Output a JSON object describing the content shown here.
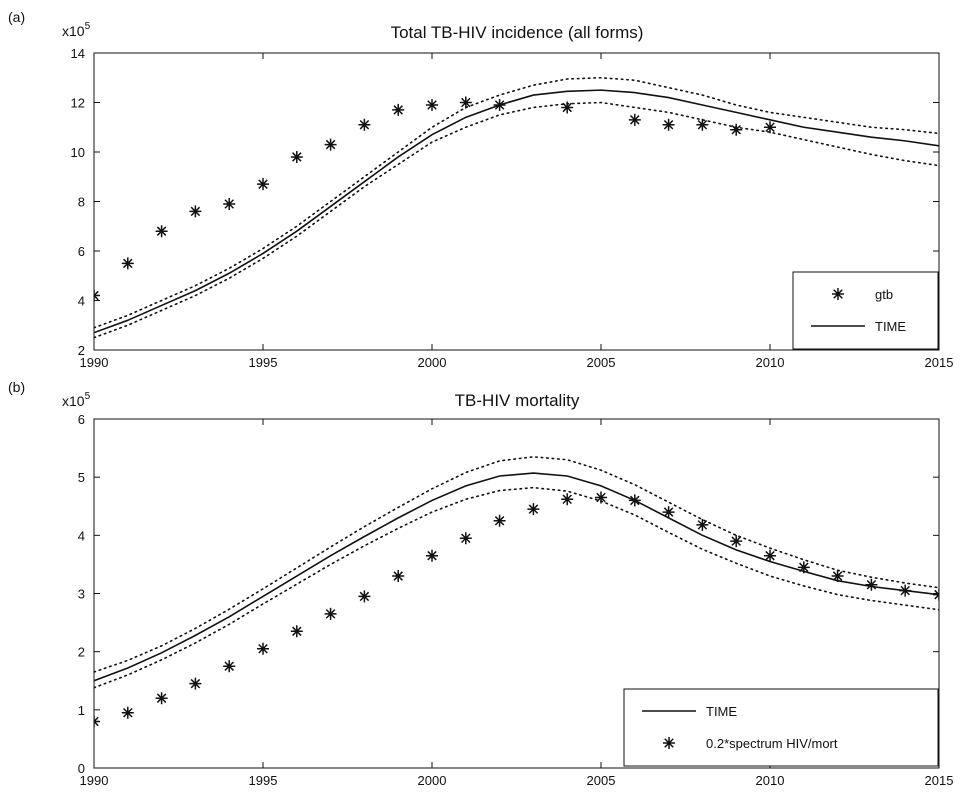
{
  "chart_data": [
    {
      "type": "line",
      "panel_label": "(a)",
      "title": "Total TB-HIV incidence (all forms)",
      "multiplier_base": "x10",
      "multiplier_exp": "5",
      "xlim": [
        1990,
        2015
      ],
      "ylim": [
        2,
        14
      ],
      "x_ticks": [
        1990,
        1995,
        2000,
        2005,
        2010,
        2015
      ],
      "y_ticks": [
        2,
        4,
        6,
        8,
        10,
        12,
        14
      ],
      "legend_position": "bottom-right",
      "legend": [
        {
          "label": "gtb",
          "marker": "star"
        },
        {
          "label": "TIME",
          "marker": "line"
        }
      ],
      "series": [
        {
          "name": "gtb",
          "style": "star",
          "x": [
            1990,
            1991,
            1992,
            1993,
            1994,
            1995,
            1996,
            1997,
            1998,
            1999,
            2000,
            2001,
            2002,
            2004,
            2006,
            2007,
            2008,
            2009,
            2010
          ],
          "y": [
            4.2,
            5.5,
            6.8,
            7.6,
            7.9,
            8.7,
            9.8,
            10.3,
            11.1,
            11.7,
            11.9,
            12.0,
            11.9,
            11.8,
            11.3,
            11.1,
            11.1,
            10.9,
            11.0
          ]
        },
        {
          "name": "TIME",
          "style": "solid",
          "x": [
            1990,
            1991,
            1992,
            1993,
            1994,
            1995,
            1996,
            1997,
            1998,
            1999,
            2000,
            2001,
            2002,
            2003,
            2004,
            2005,
            2006,
            2007,
            2008,
            2009,
            2010,
            2011,
            2012,
            2013,
            2014,
            2015
          ],
          "y": [
            2.7,
            3.2,
            3.8,
            4.4,
            5.1,
            5.9,
            6.8,
            7.8,
            8.8,
            9.8,
            10.7,
            11.4,
            11.9,
            12.3,
            12.45,
            12.5,
            12.4,
            12.2,
            11.9,
            11.6,
            11.3,
            11.0,
            10.8,
            10.6,
            10.45,
            10.25
          ]
        },
        {
          "name": "",
          "style": "dotted",
          "x": [
            1990,
            1991,
            1992,
            1993,
            1994,
            1995,
            1996,
            1997,
            1998,
            1999,
            2000,
            2001,
            2002,
            2003,
            2004,
            2005,
            2006,
            2007,
            2008,
            2009,
            2010,
            2011,
            2012,
            2013,
            2014,
            2015
          ],
          "y": [
            2.9,
            3.4,
            4.0,
            4.6,
            5.3,
            6.1,
            7.0,
            8.0,
            9.0,
            10.0,
            11.0,
            11.8,
            12.3,
            12.7,
            12.95,
            13.0,
            12.9,
            12.6,
            12.3,
            11.9,
            11.6,
            11.4,
            11.2,
            11.0,
            10.9,
            10.75
          ]
        },
        {
          "name": "",
          "style": "dotted",
          "x": [
            1990,
            1991,
            1992,
            1993,
            1994,
            1995,
            1996,
            1997,
            1998,
            1999,
            2000,
            2001,
            2002,
            2003,
            2004,
            2005,
            2006,
            2007,
            2008,
            2009,
            2010,
            2011,
            2012,
            2013,
            2014,
            2015
          ],
          "y": [
            2.5,
            3.0,
            3.6,
            4.2,
            4.9,
            5.7,
            6.6,
            7.6,
            8.6,
            9.5,
            10.4,
            11.0,
            11.5,
            11.8,
            11.95,
            12.0,
            11.8,
            11.6,
            11.3,
            11.0,
            10.8,
            10.5,
            10.2,
            9.9,
            9.65,
            9.45
          ]
        }
      ]
    },
    {
      "type": "line",
      "panel_label": "(b)",
      "title": "TB-HIV mortality",
      "multiplier_base": "x10",
      "multiplier_exp": "5",
      "xlim": [
        1990,
        2015
      ],
      "ylim": [
        0,
        6
      ],
      "x_ticks": [
        1990,
        1995,
        2000,
        2005,
        2010,
        2015
      ],
      "y_ticks": [
        0,
        1,
        2,
        3,
        4,
        5,
        6
      ],
      "legend_position": "bottom-right",
      "legend": [
        {
          "label": "TIME",
          "marker": "line"
        },
        {
          "label": "0.2*spectrum HIV/mort",
          "marker": "star"
        }
      ],
      "series": [
        {
          "name": "TIME",
          "style": "solid",
          "x": [
            1990,
            1991,
            1992,
            1993,
            1994,
            1995,
            1996,
            1997,
            1998,
            1999,
            2000,
            2001,
            2002,
            2003,
            2004,
            2005,
            2006,
            2007,
            2008,
            2009,
            2010,
            2011,
            2012,
            2013,
            2014,
            2015
          ],
          "y": [
            1.5,
            1.72,
            1.98,
            2.28,
            2.6,
            2.95,
            3.3,
            3.65,
            3.98,
            4.3,
            4.6,
            4.85,
            5.02,
            5.07,
            5.02,
            4.85,
            4.6,
            4.3,
            4.0,
            3.75,
            3.55,
            3.38,
            3.22,
            3.12,
            3.05,
            2.98
          ]
        },
        {
          "name": "",
          "style": "dotted",
          "x": [
            1990,
            1991,
            1992,
            1993,
            1994,
            1995,
            1996,
            1997,
            1998,
            1999,
            2000,
            2001,
            2002,
            2003,
            2004,
            2005,
            2006,
            2007,
            2008,
            2009,
            2010,
            2011,
            2012,
            2013,
            2014,
            2015
          ],
          "y": [
            1.65,
            1.85,
            2.1,
            2.4,
            2.73,
            3.08,
            3.44,
            3.8,
            4.15,
            4.48,
            4.8,
            5.08,
            5.28,
            5.35,
            5.3,
            5.12,
            4.87,
            4.57,
            4.27,
            4.0,
            3.78,
            3.58,
            3.4,
            3.28,
            3.18,
            3.1
          ]
        },
        {
          "name": "",
          "style": "dotted",
          "x": [
            1990,
            1991,
            1992,
            1993,
            1994,
            1995,
            1996,
            1997,
            1998,
            1999,
            2000,
            2001,
            2002,
            2003,
            2004,
            2005,
            2006,
            2007,
            2008,
            2009,
            2010,
            2011,
            2012,
            2013,
            2014,
            2015
          ],
          "y": [
            1.38,
            1.6,
            1.86,
            2.15,
            2.47,
            2.82,
            3.16,
            3.5,
            3.82,
            4.12,
            4.4,
            4.62,
            4.77,
            4.82,
            4.76,
            4.59,
            4.35,
            4.05,
            3.76,
            3.52,
            3.3,
            3.13,
            2.98,
            2.88,
            2.8,
            2.72
          ]
        },
        {
          "name": "0.2*spectrum HIV/mort",
          "style": "star",
          "x": [
            1990,
            1991,
            1992,
            1993,
            1994,
            1995,
            1996,
            1997,
            1998,
            1999,
            2000,
            2001,
            2002,
            2003,
            2004,
            2005,
            2006,
            2007,
            2008,
            2009,
            2010,
            2011,
            2012,
            2013,
            2014,
            2015
          ],
          "y": [
            0.8,
            0.95,
            1.2,
            1.45,
            1.75,
            2.05,
            2.35,
            2.65,
            2.95,
            3.3,
            3.65,
            3.95,
            4.25,
            4.45,
            4.62,
            4.65,
            4.6,
            4.4,
            4.18,
            3.9,
            3.65,
            3.45,
            3.3,
            3.15,
            3.05,
            2.98
          ]
        }
      ]
    }
  ]
}
